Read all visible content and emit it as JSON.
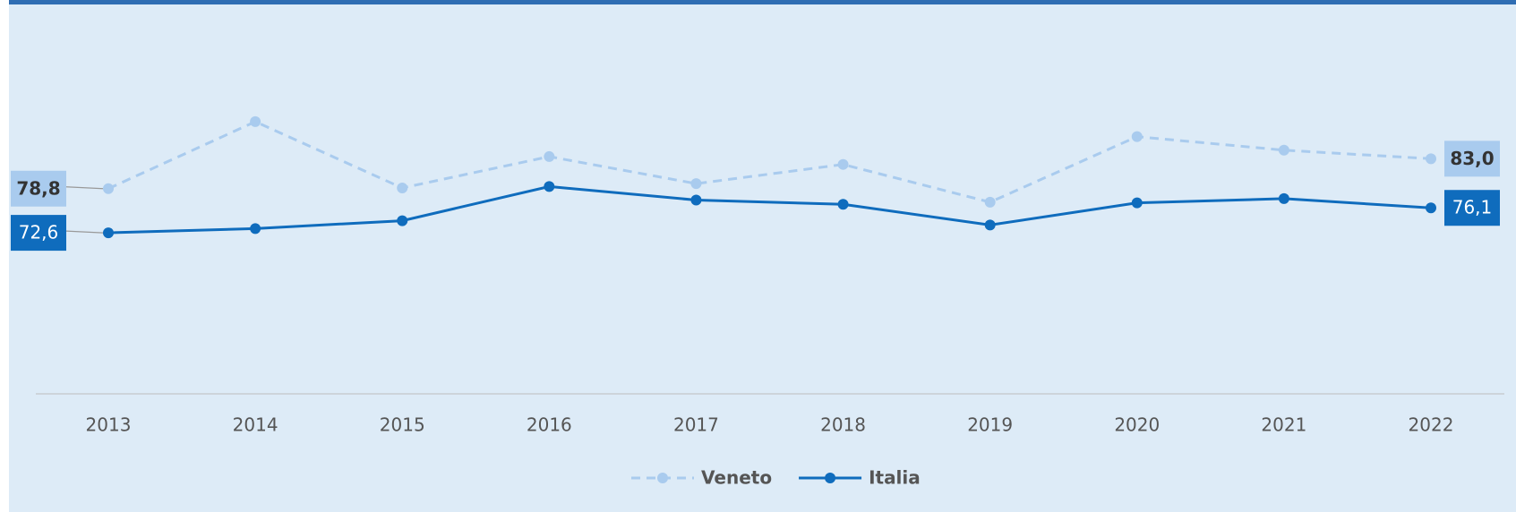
{
  "chart_data": {
    "type": "line",
    "categories": [
      "2013",
      "2014",
      "2015",
      "2016",
      "2017",
      "2018",
      "2019",
      "2020",
      "2021",
      "2022"
    ],
    "series": [
      {
        "name": "Veneto",
        "color": "#a9cbee",
        "line_style": "dashed",
        "values": [
          78.8,
          88.2,
          78.9,
          83.3,
          79.5,
          82.2,
          76.9,
          86.1,
          84.2,
          83.0
        ],
        "value_labels": [
          "78,8",
          null,
          null,
          null,
          null,
          null,
          null,
          null,
          null,
          "83,0"
        ]
      },
      {
        "name": "Italia",
        "color": "#0f6cbd",
        "line_style": "solid",
        "values": [
          72.6,
          73.2,
          74.3,
          79.1,
          77.2,
          76.6,
          73.7,
          76.8,
          77.4,
          76.1
        ],
        "value_labels": [
          "72,6",
          null,
          null,
          null,
          null,
          null,
          null,
          null,
          null,
          "76,1"
        ]
      }
    ],
    "ylim": [
      50,
      100
    ],
    "grid": false,
    "legend": "bottom"
  }
}
